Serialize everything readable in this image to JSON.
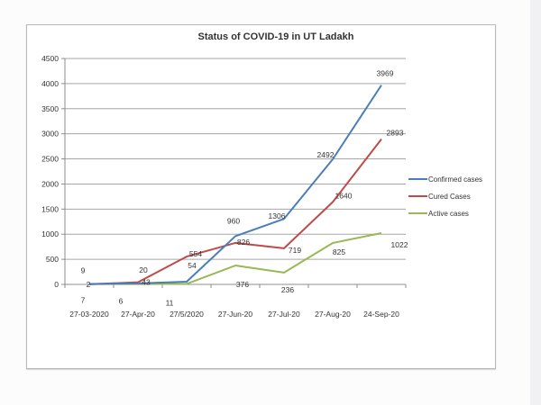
{
  "chart_data": {
    "type": "line",
    "title": "Status of COVID-19 in UT Ladakh",
    "xlabel": "",
    "ylabel": "",
    "ylim": [
      0,
      4500
    ],
    "yticks": [
      0,
      500,
      1000,
      1500,
      2000,
      2500,
      3000,
      3500,
      4000,
      4500
    ],
    "grid": true,
    "legend_position": "right",
    "categories": [
      "27-03-2020",
      "27-Apr-20",
      "27/5/2020",
      "27-Jun-20",
      "27-Jul-20",
      "27-Aug-20",
      "24-Sep-20"
    ],
    "series": [
      {
        "name": "Confirmed cases",
        "color": "#4a7ebb",
        "values": [
          9,
          20,
          54,
          960,
          1306,
          2492,
          3969
        ]
      },
      {
        "name": "Cured Cases",
        "color": "#be4b48",
        "values": [
          2,
          43,
          554,
          826,
          719,
          1640,
          2893
        ]
      },
      {
        "name": "Active cases",
        "color": "#98b954",
        "values": [
          7,
          6,
          11,
          376,
          236,
          825,
          1022
        ]
      }
    ]
  },
  "legend": {
    "confirmed": "Confirmed cases",
    "cured": "Cured Cases",
    "active": "Active cases"
  }
}
